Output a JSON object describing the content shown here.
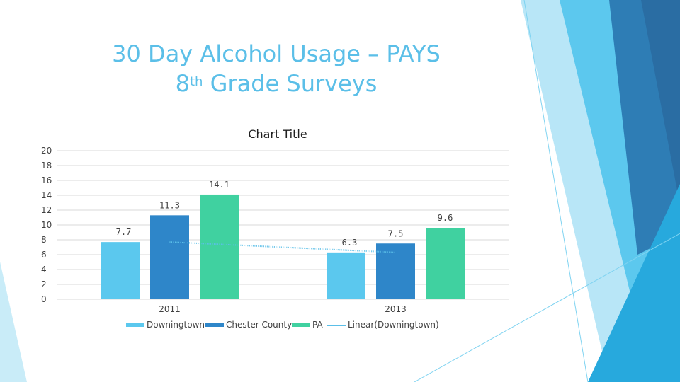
{
  "slide": {
    "title_line1": "30 Day Alcohol Usage – PAYS",
    "title_line2_pre": "8",
    "title_line2_sup": "th",
    "title_line2_post": " Grade Surveys"
  },
  "colors": {
    "Downingtown": "#5bc8ee",
    "Chester County": "#2e86c9",
    "PA": "#40d1a0",
    "trend": "#5bbfe8",
    "title": "#5bbfe8"
  },
  "chart_data": {
    "type": "bar",
    "title": "Chart Title",
    "categories": [
      "2011",
      "2013"
    ],
    "series": [
      {
        "name": "Downingtown",
        "values": [
          7.7,
          6.3
        ]
      },
      {
        "name": "Chester County",
        "values": [
          11.3,
          7.5
        ]
      },
      {
        "name": "PA",
        "values": [
          14.1,
          9.6
        ]
      }
    ],
    "trendline": {
      "name": "Linear(Downingtown)",
      "series": "Downingtown",
      "values": [
        7.7,
        6.3
      ]
    },
    "ylim": [
      0,
      20
    ],
    "yticks": [
      0,
      2,
      4,
      6,
      8,
      10,
      12,
      14,
      16,
      18,
      20
    ],
    "grid": true,
    "legend_position": "bottom",
    "xlabel": "",
    "ylabel": ""
  }
}
